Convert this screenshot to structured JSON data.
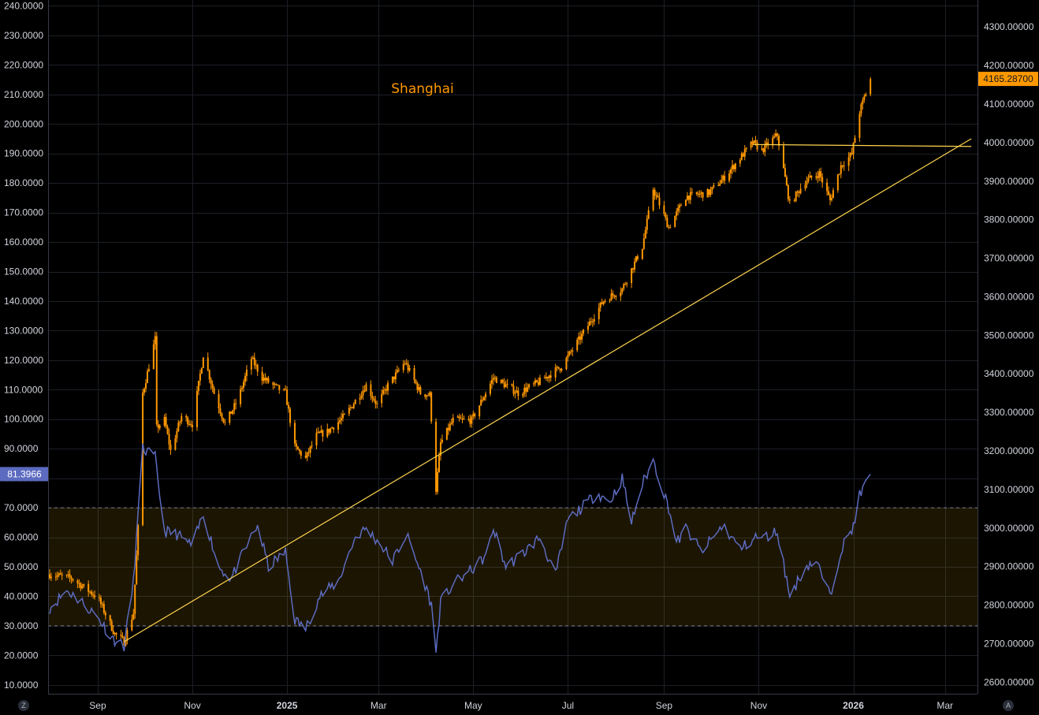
{
  "chart_data": {
    "title": "Shanghai",
    "type": "line",
    "left_axis": {
      "ticks": [
        "240.0000",
        "230.0000",
        "220.0000",
        "210.0000",
        "200.0000",
        "190.0000",
        "180.0000",
        "170.0000",
        "160.0000",
        "150.0000",
        "140.0000",
        "130.0000",
        "120.0000",
        "110.0000",
        "100.0000",
        "90.0000",
        "80.0000",
        "70.0000",
        "60.0000",
        "50.0000",
        "40.0000",
        "30.0000",
        "20.0000",
        "10.0000"
      ],
      "tick_values": [
        240,
        230,
        220,
        210,
        200,
        190,
        180,
        170,
        160,
        150,
        140,
        130,
        120,
        110,
        100,
        90,
        80,
        70,
        60,
        50,
        40,
        30,
        20,
        10
      ],
      "range": [
        7,
        242
      ]
    },
    "right_axis": {
      "ticks": [
        "4300.00000",
        "4200.00000",
        "4100.00000",
        "4000.00000",
        "3900.00000",
        "3800.00000",
        "3700.00000",
        "3600.00000",
        "3500.00000",
        "3400.00000",
        "3300.00000",
        "3200.00000",
        "3100.00000",
        "3000.00000",
        "2900.00000",
        "2800.00000",
        "2700.00000",
        "2600.00000"
      ],
      "tick_values": [
        4300,
        4200,
        4100,
        4000,
        3900,
        3800,
        3700,
        3600,
        3500,
        3400,
        3300,
        3200,
        3100,
        3000,
        2900,
        2800,
        2700,
        2600
      ],
      "range": [
        2570,
        4370
      ]
    },
    "x_axis": {
      "labels": [
        {
          "text": "Sep",
          "date": "2024-09-01",
          "bold": false
        },
        {
          "text": "Nov",
          "date": "2024-11-01",
          "bold": false
        },
        {
          "text": "2025",
          "date": "2025-01-01",
          "bold": true
        },
        {
          "text": "Mar",
          "date": "2025-03-01",
          "bold": false
        },
        {
          "text": "May",
          "date": "2025-05-01",
          "bold": false
        },
        {
          "text": "Jul",
          "date": "2025-07-01",
          "bold": false
        },
        {
          "text": "Sep",
          "date": "2025-09-01",
          "bold": false
        },
        {
          "text": "Nov",
          "date": "2025-11-01",
          "bold": false
        },
        {
          "text": "2026",
          "date": "2026-01-01",
          "bold": true
        },
        {
          "text": "Mar",
          "date": "2026-03-01",
          "bold": false
        }
      ],
      "range": [
        "2024-07-31",
        "2026-03-22"
      ]
    },
    "rsi_band": {
      "upper": 70,
      "lower": 30,
      "fill": "#ffc107"
    },
    "price_label": {
      "text": "4165.28700",
      "value": 4165.287
    },
    "rsi_label": {
      "text": "81.3966",
      "value": 81.3966
    },
    "series": [
      {
        "axis": "right",
        "style": "candles",
        "color": "#ff9800",
        "points": [
          [
            "2024-08-01",
            2880
          ],
          [
            "2024-08-15",
            2870
          ],
          [
            "2024-09-01",
            2820
          ],
          [
            "2024-09-12",
            2725
          ],
          [
            "2024-09-18",
            2705
          ],
          [
            "2024-09-24",
            2780
          ],
          [
            "2024-09-27",
            3000
          ],
          [
            "2024-09-30",
            3350
          ],
          [
            "2024-10-08",
            3490
          ],
          [
            "2024-10-09",
            3260
          ],
          [
            "2024-10-14",
            3280
          ],
          [
            "2024-10-18",
            3200
          ],
          [
            "2024-10-25",
            3290
          ],
          [
            "2024-11-01",
            3270
          ],
          [
            "2024-11-08",
            3450
          ],
          [
            "2024-11-15",
            3350
          ],
          [
            "2024-11-22",
            3270
          ],
          [
            "2024-11-30",
            3330
          ],
          [
            "2024-12-09",
            3440
          ],
          [
            "2024-12-16",
            3390
          ],
          [
            "2024-12-23",
            3370
          ],
          [
            "2024-12-31",
            3350
          ],
          [
            "2025-01-06",
            3210
          ],
          [
            "2025-01-13",
            3180
          ],
          [
            "2025-01-20",
            3240
          ],
          [
            "2025-01-27",
            3250
          ],
          [
            "2025-02-07",
            3290
          ],
          [
            "2025-02-14",
            3330
          ],
          [
            "2025-02-21",
            3370
          ],
          [
            "2025-02-28",
            3320
          ],
          [
            "2025-03-07",
            3370
          ],
          [
            "2025-03-18",
            3430
          ],
          [
            "2025-03-28",
            3350
          ],
          [
            "2025-04-03",
            3345
          ],
          [
            "2025-04-07",
            3100
          ],
          [
            "2025-04-10",
            3220
          ],
          [
            "2025-04-18",
            3280
          ],
          [
            "2025-04-30",
            3280
          ],
          [
            "2025-05-14",
            3390
          ],
          [
            "2025-05-30",
            3350
          ],
          [
            "2025-06-13",
            3380
          ],
          [
            "2025-06-27",
            3420
          ],
          [
            "2025-07-10",
            3500
          ],
          [
            "2025-07-24",
            3590
          ],
          [
            "2025-08-05",
            3620
          ],
          [
            "2025-08-18",
            3730
          ],
          [
            "2025-08-25",
            3880
          ],
          [
            "2025-09-04",
            3780
          ],
          [
            "2025-09-15",
            3860
          ],
          [
            "2025-09-30",
            3870
          ],
          [
            "2025-10-10",
            3910
          ],
          [
            "2025-10-28",
            4000
          ],
          [
            "2025-11-03",
            3980
          ],
          [
            "2025-11-13",
            4020
          ],
          [
            "2025-11-21",
            3840
          ],
          [
            "2025-12-01",
            3900
          ],
          [
            "2025-12-10",
            3920
          ],
          [
            "2025-12-17",
            3850
          ],
          [
            "2025-12-24",
            3940
          ],
          [
            "2025-12-31",
            3970
          ],
          [
            "2026-01-05",
            4080
          ],
          [
            "2026-01-12",
            4165.287
          ]
        ]
      },
      {
        "axis": "left",
        "style": "line",
        "color": "#5c6bc0",
        "points": [
          [
            "2024-08-01",
            36
          ],
          [
            "2024-08-12",
            42
          ],
          [
            "2024-08-22",
            38
          ],
          [
            "2024-09-01",
            33
          ],
          [
            "2024-09-10",
            26
          ],
          [
            "2024-09-18",
            23
          ],
          [
            "2024-09-24",
            45
          ],
          [
            "2024-09-30",
            90
          ],
          [
            "2024-10-08",
            87
          ],
          [
            "2024-10-14",
            62
          ],
          [
            "2024-10-22",
            61
          ],
          [
            "2024-11-01",
            57
          ],
          [
            "2024-11-08",
            68
          ],
          [
            "2024-11-18",
            50
          ],
          [
            "2024-11-26",
            46
          ],
          [
            "2024-12-06",
            57
          ],
          [
            "2024-12-13",
            64
          ],
          [
            "2024-12-20",
            50
          ],
          [
            "2024-12-31",
            55
          ],
          [
            "2025-01-06",
            32
          ],
          [
            "2025-01-13",
            29
          ],
          [
            "2025-01-22",
            40
          ],
          [
            "2025-02-03",
            45
          ],
          [
            "2025-02-14",
            60
          ],
          [
            "2025-02-21",
            63
          ],
          [
            "2025-03-03",
            57
          ],
          [
            "2025-03-10",
            52
          ],
          [
            "2025-03-19",
            61
          ],
          [
            "2025-03-31",
            44
          ],
          [
            "2025-04-04",
            37
          ],
          [
            "2025-04-07",
            21
          ],
          [
            "2025-04-10",
            38
          ],
          [
            "2025-04-18",
            44
          ],
          [
            "2025-04-30",
            49
          ],
          [
            "2025-05-10",
            54
          ],
          [
            "2025-05-14",
            63
          ],
          [
            "2025-05-22",
            50
          ],
          [
            "2025-06-03",
            55
          ],
          [
            "2025-06-13",
            60
          ],
          [
            "2025-06-23",
            47
          ],
          [
            "2025-07-01",
            66
          ],
          [
            "2025-07-10",
            70
          ],
          [
            "2025-07-20",
            75
          ],
          [
            "2025-07-28",
            72
          ],
          [
            "2025-08-05",
            80
          ],
          [
            "2025-08-11",
            65
          ],
          [
            "2025-08-18",
            78
          ],
          [
            "2025-08-25",
            86
          ],
          [
            "2025-09-04",
            70
          ],
          [
            "2025-09-09",
            58
          ],
          [
            "2025-09-15",
            63
          ],
          [
            "2025-09-25",
            55
          ],
          [
            "2025-10-09",
            64
          ],
          [
            "2025-10-20",
            56
          ],
          [
            "2025-10-30",
            60
          ],
          [
            "2025-11-05",
            60
          ],
          [
            "2025-11-13",
            62
          ],
          [
            "2025-11-21",
            40
          ],
          [
            "2025-12-01",
            50
          ],
          [
            "2025-12-08",
            52
          ],
          [
            "2025-12-17",
            40
          ],
          [
            "2025-12-24",
            56
          ],
          [
            "2025-12-31",
            62
          ],
          [
            "2026-01-05",
            74
          ],
          [
            "2026-01-12",
            81.3966
          ]
        ]
      }
    ],
    "trendlines": [
      {
        "axis": "right",
        "from": [
          "2024-09-18",
          2705
        ],
        "to": [
          "2026-03-18",
          4010
        ],
        "color": "#ffd54f"
      },
      {
        "axis": "right",
        "from": [
          "2025-10-28",
          3995
        ],
        "to": [
          "2026-03-18",
          3990
        ],
        "color": "#ffd54f"
      }
    ],
    "grid": true
  },
  "corner_left": "Z",
  "corner_right": "A"
}
